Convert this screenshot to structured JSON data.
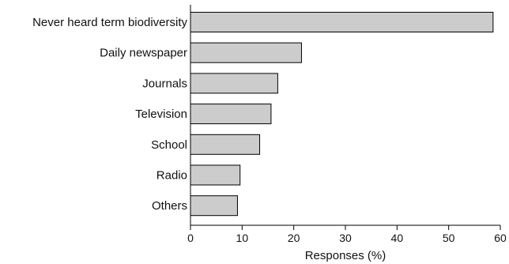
{
  "chart_data": {
    "type": "bar",
    "orientation": "horizontal",
    "categories": [
      "Never heard term biodiversity",
      "Daily newspaper",
      "Journals",
      "Television",
      "School",
      "Radio",
      "Others"
    ],
    "values": [
      58.6,
      21.5,
      16.9,
      15.6,
      13.4,
      9.6,
      9.1
    ],
    "xlabel": "Responses (%)",
    "ylabel": "",
    "xlim": [
      0,
      60
    ],
    "xticks": [
      0,
      10,
      20,
      30,
      40,
      50,
      60
    ],
    "bar_color": "#cccccc",
    "edge_color": "#000000",
    "grid": false
  }
}
